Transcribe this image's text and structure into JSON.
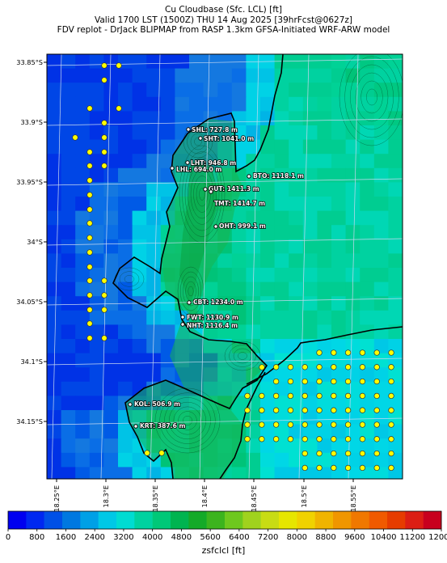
{
  "header": {
    "title_line1": "Cu Cloudbase (Sfc. LCL) [ft]",
    "title_line2": "Valid 1700 LST (1500Z) THU 14 Aug 2025 [39hrFcst@0627z]",
    "title_line3": "FDV replot - DrJack BLIPMAP from RASP 1.3km GFSA-Initiated WRF-ARW model"
  },
  "map": {
    "lat_labels": [
      "33.85°S",
      "33.9°S",
      "33.95°S",
      "34°S",
      "34.05°S",
      "34.1°S",
      "34.15°S"
    ],
    "lon_labels": [
      "18.25°E",
      "18.3°E",
      "18.35°E",
      "18.4°E",
      "18.45°E",
      "18.5°E",
      "18.55°E"
    ],
    "sites": [
      {
        "label": "SHL: 727.8 m"
      },
      {
        "label": "SHT: 1041.0 m"
      },
      {
        "label": "LHT: 946.8 m"
      },
      {
        "label": "LHL: 694.0 m"
      },
      {
        "label": "BTO: 1118.1 m"
      },
      {
        "label": "GUT: 1411.3 m"
      },
      {
        "label": "TMT: 1414.7 m"
      },
      {
        "label": "OHT: 999.1 m"
      },
      {
        "label": "CBT: 1234.0 m"
      },
      {
        "label": "FWT: 1130.9 m"
      },
      {
        "label": "NHT: 1116.4 m"
      },
      {
        "label": "KOL: 506.9 m"
      },
      {
        "label": "KRT: 387.6 m"
      }
    ],
    "colors": {
      "ocean_blue": "#1a5ae6",
      "land_green": "#18b450",
      "marker_fill": "#ffff00"
    }
  },
  "colorbar": {
    "tick_labels": [
      "0",
      "800",
      "1600",
      "2400",
      "3200",
      "4000",
      "4800",
      "5600",
      "6400",
      "7200",
      "8000",
      "8800",
      "9600",
      "10400",
      "11200",
      "12000"
    ],
    "colors": [
      "#0000f0",
      "#0028f0",
      "#0050e6",
      "#0078e0",
      "#00a0e6",
      "#00c8e6",
      "#00dcd2",
      "#00d2a0",
      "#00c878",
      "#00b450",
      "#14aa28",
      "#3cb41e",
      "#6ec81e",
      "#a0d21e",
      "#c8dc14",
      "#e6e600",
      "#f0d200",
      "#f0b400",
      "#f09600",
      "#f07800",
      "#f05a00",
      "#e63c00",
      "#dc1e14",
      "#c8001e"
    ],
    "label": "zsfclcl [ft]"
  }
}
